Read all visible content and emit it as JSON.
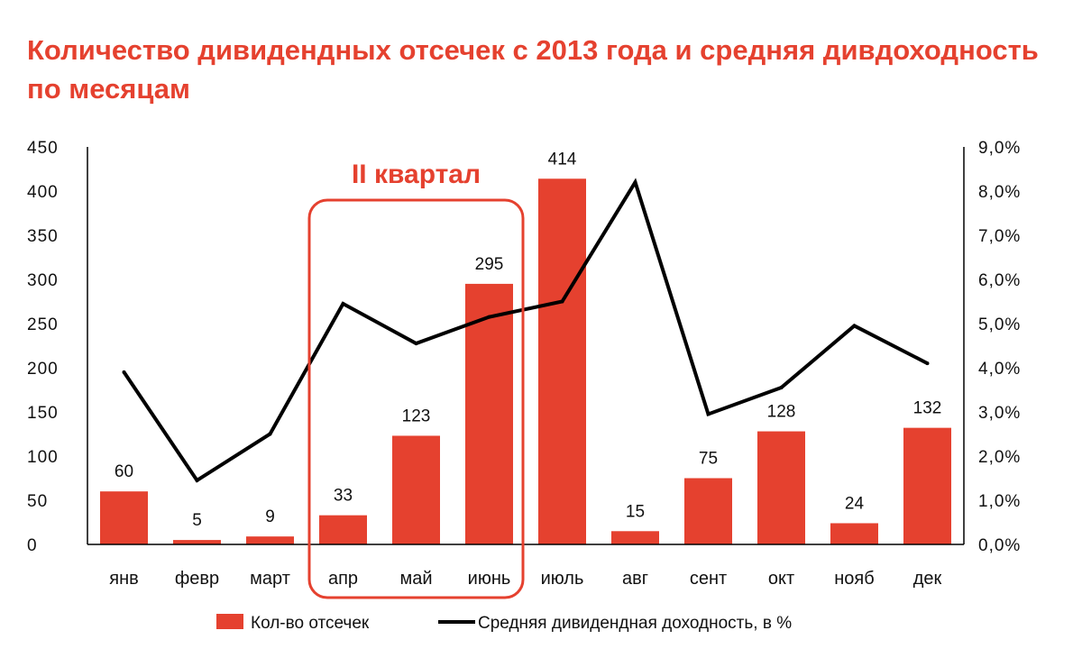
{
  "title": "Количество дивидендных отсечек с 2013 года и средняя дивдоходность по месяцам",
  "colors": {
    "bar": "#e5412f",
    "line": "#000000",
    "accent": "#e5412f"
  },
  "chart_data": {
    "type": "bar",
    "title": "Количество дивидендных отсечек с 2013 года и средняя дивдоходность по месяцам",
    "categories": [
      "янв",
      "февр",
      "март",
      "апр",
      "май",
      "июнь",
      "июль",
      "авг",
      "сент",
      "окт",
      "нояб",
      "дек"
    ],
    "series": [
      {
        "name": "Кол-во отсечек",
        "kind": "bar",
        "axis": "left",
        "values": [
          60,
          5,
          9,
          33,
          123,
          295,
          414,
          15,
          75,
          128,
          24,
          132
        ]
      },
      {
        "name": "Средняя дивидендная доходность, в %",
        "kind": "line",
        "axis": "right",
        "values": [
          3.9,
          1.45,
          2.5,
          5.45,
          4.55,
          5.15,
          5.5,
          8.2,
          2.95,
          3.55,
          4.95,
          4.1
        ]
      }
    ],
    "y_left": {
      "min": 0,
      "max": 450,
      "ticks": [
        "0",
        "50",
        "100",
        "150",
        "200",
        "250",
        "300",
        "350",
        "400",
        "450"
      ]
    },
    "y_right": {
      "min": 0,
      "max": 9,
      "ticks": [
        "0,0%",
        "1,0%",
        "2,0%",
        "3,0%",
        "4,0%",
        "5,0%",
        "6,0%",
        "7,0%",
        "8,0%",
        "9,0%"
      ]
    },
    "grid": false,
    "legend_position": "bottom",
    "annotation": {
      "text": "II квартал",
      "from_category": "апр",
      "to_category": "июнь"
    }
  }
}
